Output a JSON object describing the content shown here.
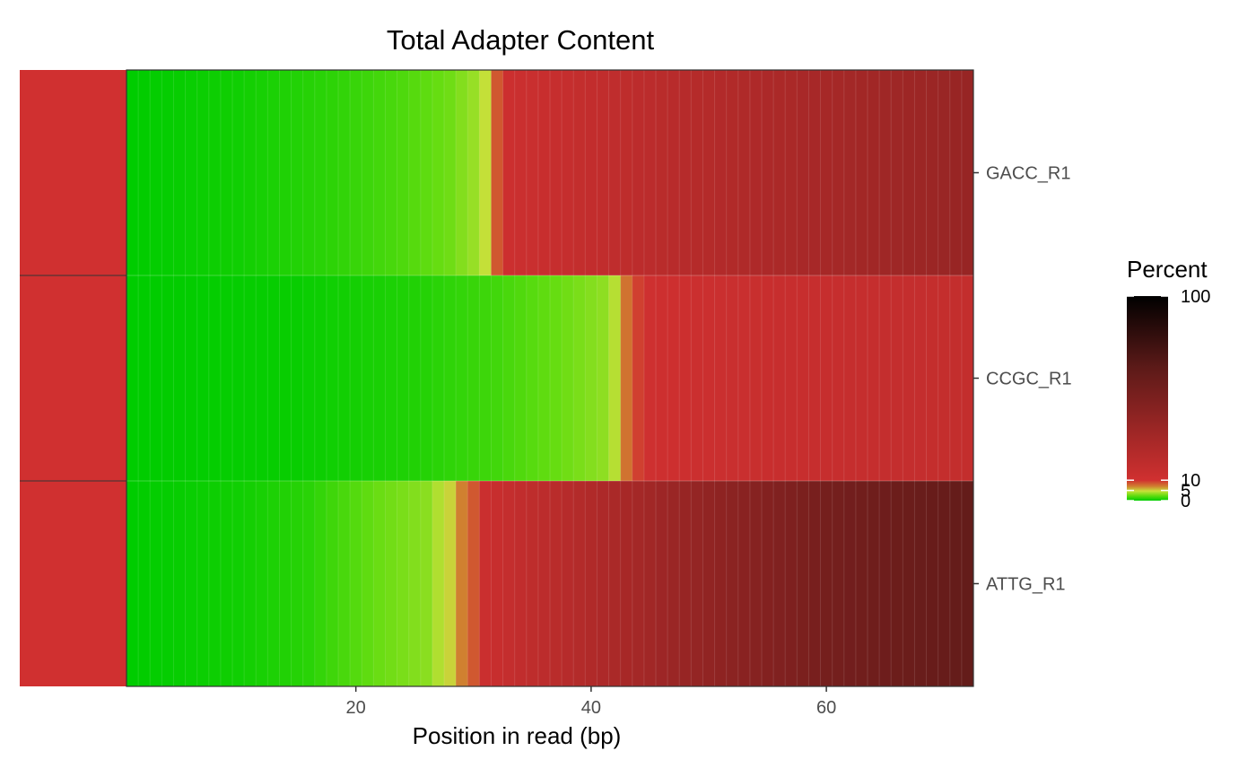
{
  "chart_data": {
    "type": "heatmap",
    "title": "Total Adapter Content",
    "xlabel": "Position in read (bp)",
    "ylabel": "",
    "x_ticks": [
      20,
      40,
      60
    ],
    "x_range": [
      1,
      72
    ],
    "legend": {
      "title": "Percent",
      "ticks": [
        0,
        5,
        10,
        100
      ],
      "position": "right"
    },
    "status_column": {
      "label": "",
      "color": "#d03030"
    },
    "colors": {
      "zero": "#00cc00",
      "low_mid": "#66dd11",
      "low_high": "#c8e03a",
      "transition": "#d08030",
      "red": "#d03030",
      "dark": "#5c1a18",
      "black": "#000000"
    },
    "rows": [
      {
        "sample": "GACC_R1",
        "profile": [
          [
            1,
            0
          ],
          [
            10,
            0.4
          ],
          [
            18,
            1.1
          ],
          [
            24,
            1.9
          ],
          [
            28,
            2.7
          ],
          [
            30,
            3.6
          ],
          [
            31,
            4.6
          ],
          [
            32,
            8.5
          ],
          [
            33,
            12
          ],
          [
            45,
            20
          ],
          [
            55,
            27
          ],
          [
            65,
            33
          ],
          [
            72,
            37
          ]
        ]
      },
      {
        "sample": "CCGC_R1",
        "profile": [
          [
            1,
            0
          ],
          [
            15,
            0.2
          ],
          [
            25,
            0.8
          ],
          [
            32,
            1.6
          ],
          [
            37,
            2.5
          ],
          [
            41,
            3.4
          ],
          [
            42,
            4.3
          ],
          [
            43,
            7.5
          ],
          [
            44,
            9.4
          ],
          [
            45,
            11
          ],
          [
            55,
            14
          ],
          [
            65,
            15.5
          ],
          [
            72,
            16
          ]
        ]
      },
      {
        "sample": "ATTG_R1",
        "profile": [
          [
            1,
            0
          ],
          [
            10,
            0.4
          ],
          [
            16,
            1.0
          ],
          [
            19,
            1.8
          ],
          [
            22,
            2.6
          ],
          [
            26,
            3.3
          ],
          [
            28,
            5
          ],
          [
            29,
            7
          ],
          [
            30,
            8.5
          ],
          [
            31,
            13
          ],
          [
            40,
            25
          ],
          [
            50,
            40
          ],
          [
            60,
            53
          ],
          [
            70,
            60
          ],
          [
            72,
            61
          ]
        ]
      }
    ]
  }
}
